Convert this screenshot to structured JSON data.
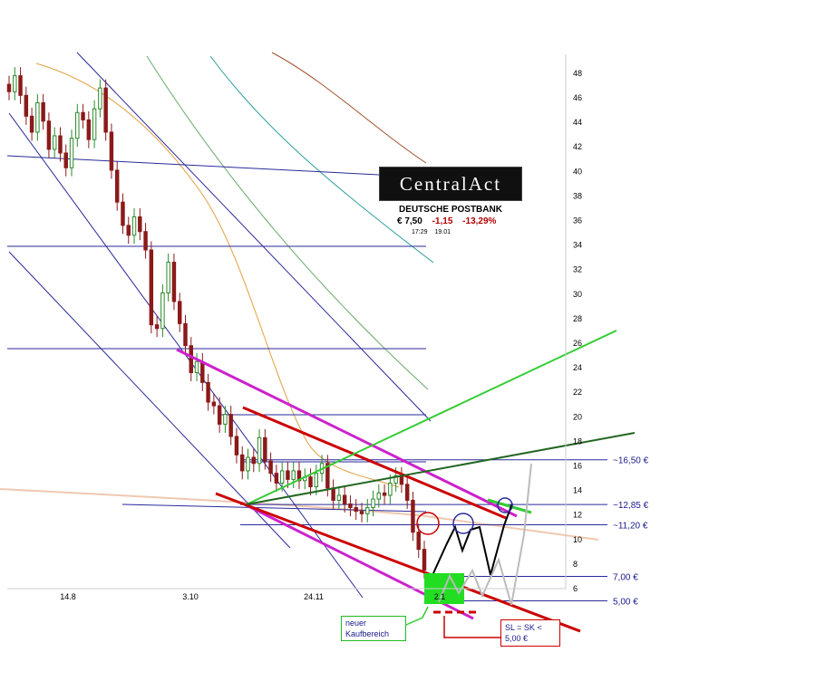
{
  "quote": {
    "logo_text": "CentralAct",
    "name": "DEUTSCHE POSTBANK",
    "price": "€ 7,50",
    "change": "-1,15",
    "change_pct": "-13,29%",
    "time": "17:29",
    "date": "19.01"
  },
  "annotations": {
    "buy_zone_line1": "neuer",
    "buy_zone_line2": "Kaufbereich",
    "stop_line1": "SL = SK <",
    "stop_line2": "5,00 €"
  },
  "colors": {
    "candle_up": "#2a8a2a",
    "candle_down": "#8b1a1a",
    "trend_red": "#cc0000",
    "trend_magenta": "#cc22cc",
    "trend_green": "#33cc33",
    "trend_darkgreen": "#226622",
    "channel_blue": "#2a2a9a",
    "scenario_black": "#000000",
    "scenario_gray": "#bbbbbb",
    "buy_zone": "#22dd22"
  },
  "chart_data": {
    "type": "line",
    "title": "",
    "xlabel": "",
    "ylabel": "",
    "ylim": [
      4,
      49
    ],
    "y_ticks": [
      "48",
      "46",
      "44",
      "42",
      "40",
      "38",
      "36",
      "34",
      "32",
      "30",
      "28",
      "26",
      "24",
      "22",
      "20",
      "18",
      "16",
      "14",
      "12",
      "10",
      "8",
      "6"
    ],
    "x_ticks": [
      "14.8",
      "3.10",
      "24.11",
      "2.1"
    ],
    "price_levels": [
      {
        "label": "~16,50 €",
        "value": 16.5
      },
      {
        "label": "~12,85 €",
        "value": 12.85
      },
      {
        "label": "~11,20 €",
        "value": 11.2
      },
      {
        "label": "7,00 €",
        "value": 7.0
      },
      {
        "label": "5,00 €",
        "value": 5.0
      }
    ],
    "series": [
      {
        "values": [
          46.5,
          47.8,
          46.2,
          44.5,
          43.2,
          45.6,
          44.1,
          41.8,
          42.9,
          41.5,
          40.3,
          42.7,
          44.8,
          44.2,
          42.6,
          45.1,
          46.8,
          43.2,
          40.1,
          37.5,
          35.6,
          34.8,
          36.3,
          35.1,
          33.6,
          27.5,
          27.2,
          30.1,
          32.6,
          29.4,
          27.6,
          25.8,
          23.6,
          24.5,
          22.8,
          21.2,
          20.9,
          19.4,
          20.2,
          18.4,
          16.9,
          15.6,
          16.7,
          16.2,
          18.3,
          16.4,
          15.4,
          14.6,
          15.6,
          14.9,
          15.6,
          14.8,
          15.1,
          14.3,
          15.4,
          16.2,
          14.2,
          13.2,
          13.6,
          12.9,
          12.6,
          12.3,
          12.1,
          12.6,
          13.3,
          13.8,
          13.6,
          14.6,
          15.2,
          14.5,
          13.2,
          10.6,
          9.2,
          7.5
        ]
      }
    ]
  }
}
